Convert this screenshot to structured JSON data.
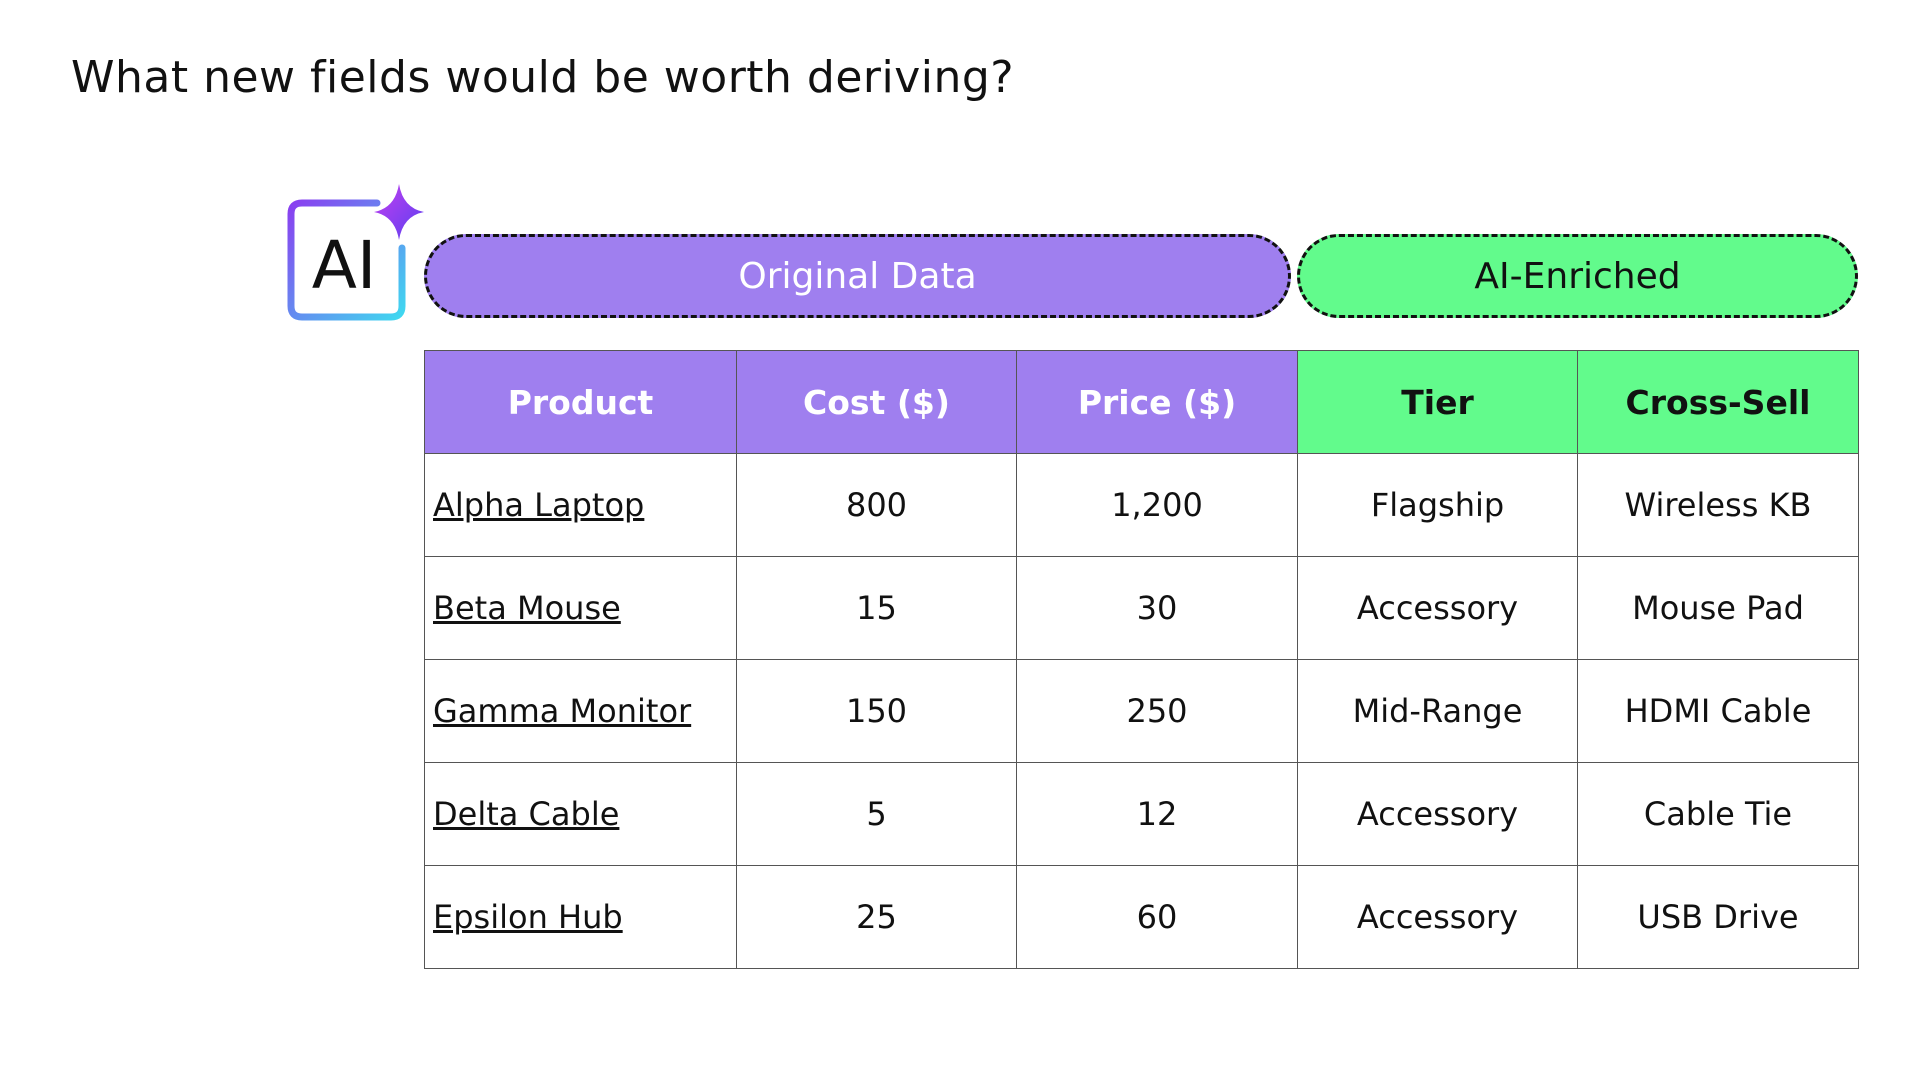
{
  "header": {
    "title": "What new fields would be worth deriving?"
  },
  "icon": {
    "label": "AI"
  },
  "groups": {
    "original": "Original Data",
    "enriched": "AI-Enriched"
  },
  "table": {
    "columns": [
      "Product",
      "Cost ($)",
      "Price ($)",
      "Tier",
      "Cross-Sell"
    ],
    "rows": [
      [
        "Alpha Laptop",
        "800",
        "1,200",
        "Flagship",
        "Wireless KB"
      ],
      [
        "Beta Mouse",
        "15",
        "30",
        "Accessory",
        "Mouse Pad"
      ],
      [
        "Gamma Monitor",
        "150",
        "250",
        "Mid-Range",
        "HDMI Cable"
      ],
      [
        "Delta Cable",
        "5",
        "12",
        "Accessory",
        "Cable Tie"
      ],
      [
        "Epsilon Hub",
        "25",
        "60",
        "Accessory",
        "USB Drive"
      ]
    ]
  }
}
